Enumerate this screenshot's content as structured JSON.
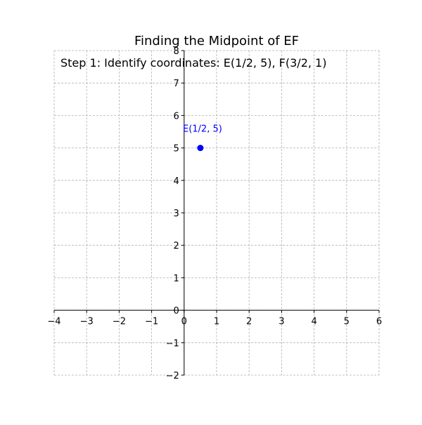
{
  "chart_data": {
    "type": "scatter",
    "title": "Finding the Midpoint of EF",
    "annotation": "Step 1: Identify coordinates: E(1/2, 5), F(3/2, 1)",
    "xlabel": "",
    "ylabel": "",
    "xlim": [
      -4,
      6
    ],
    "ylim": [
      -2,
      8
    ],
    "x_ticks": [
      -4,
      -3,
      -2,
      -1,
      0,
      1,
      2,
      3,
      4,
      5,
      6
    ],
    "x_tick_labels": [
      "−4",
      "−3",
      "−2",
      "−1",
      "0",
      "1",
      "2",
      "3",
      "4",
      "5",
      "6"
    ],
    "y_ticks": [
      -2,
      -1,
      0,
      1,
      2,
      3,
      4,
      5,
      6,
      7,
      8
    ],
    "y_tick_labels": [
      "−2",
      "−1",
      "0",
      "1",
      "2",
      "3",
      "4",
      "5",
      "6",
      "7",
      "8"
    ],
    "grid": true,
    "grid_color": "#b0b0b0",
    "axis_color": "#000000",
    "points": [
      {
        "label": "E(1/2, 5)",
        "x": 0.5,
        "y": 5,
        "color": "#0000ff"
      }
    ]
  }
}
